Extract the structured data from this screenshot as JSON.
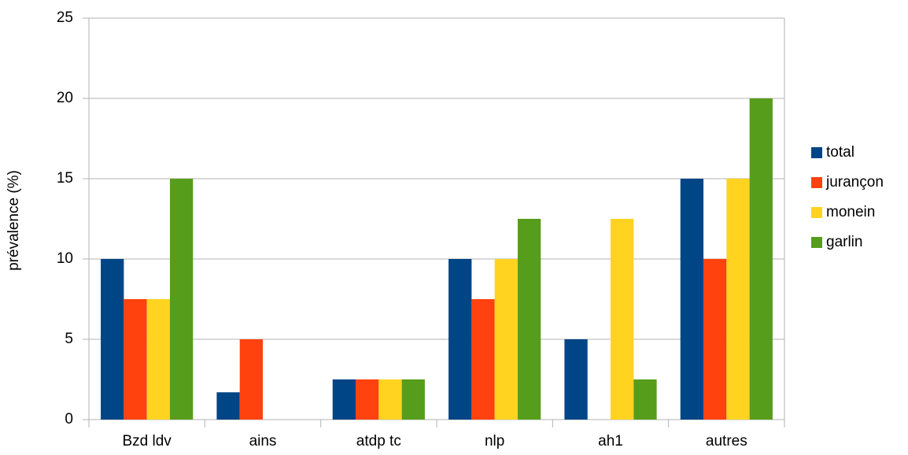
{
  "chart_data": {
    "type": "bar",
    "y_label": "prévalence (%)",
    "categories": [
      "Bzd ldv",
      "ains",
      "atdp tc",
      "nlp",
      "ah1",
      "autres"
    ],
    "series": [
      {
        "name": "total",
        "color": "#004586",
        "values": [
          10,
          1.7,
          2.5,
          10,
          5,
          15
        ]
      },
      {
        "name": "jurançon",
        "color": "#ff420e",
        "values": [
          7.5,
          5,
          2.5,
          7.5,
          0,
          10
        ]
      },
      {
        "name": "monein",
        "color": "#ffd320",
        "values": [
          7.5,
          0,
          2.5,
          10,
          12.5,
          15
        ]
      },
      {
        "name": "garlin",
        "color": "#579d1c",
        "values": [
          15,
          0,
          2.5,
          12.5,
          2.5,
          20
        ]
      }
    ],
    "ylim": [
      0,
      25
    ],
    "yticks": [
      0,
      5,
      10,
      15,
      20,
      25
    ],
    "grid": true,
    "legend": "right"
  }
}
